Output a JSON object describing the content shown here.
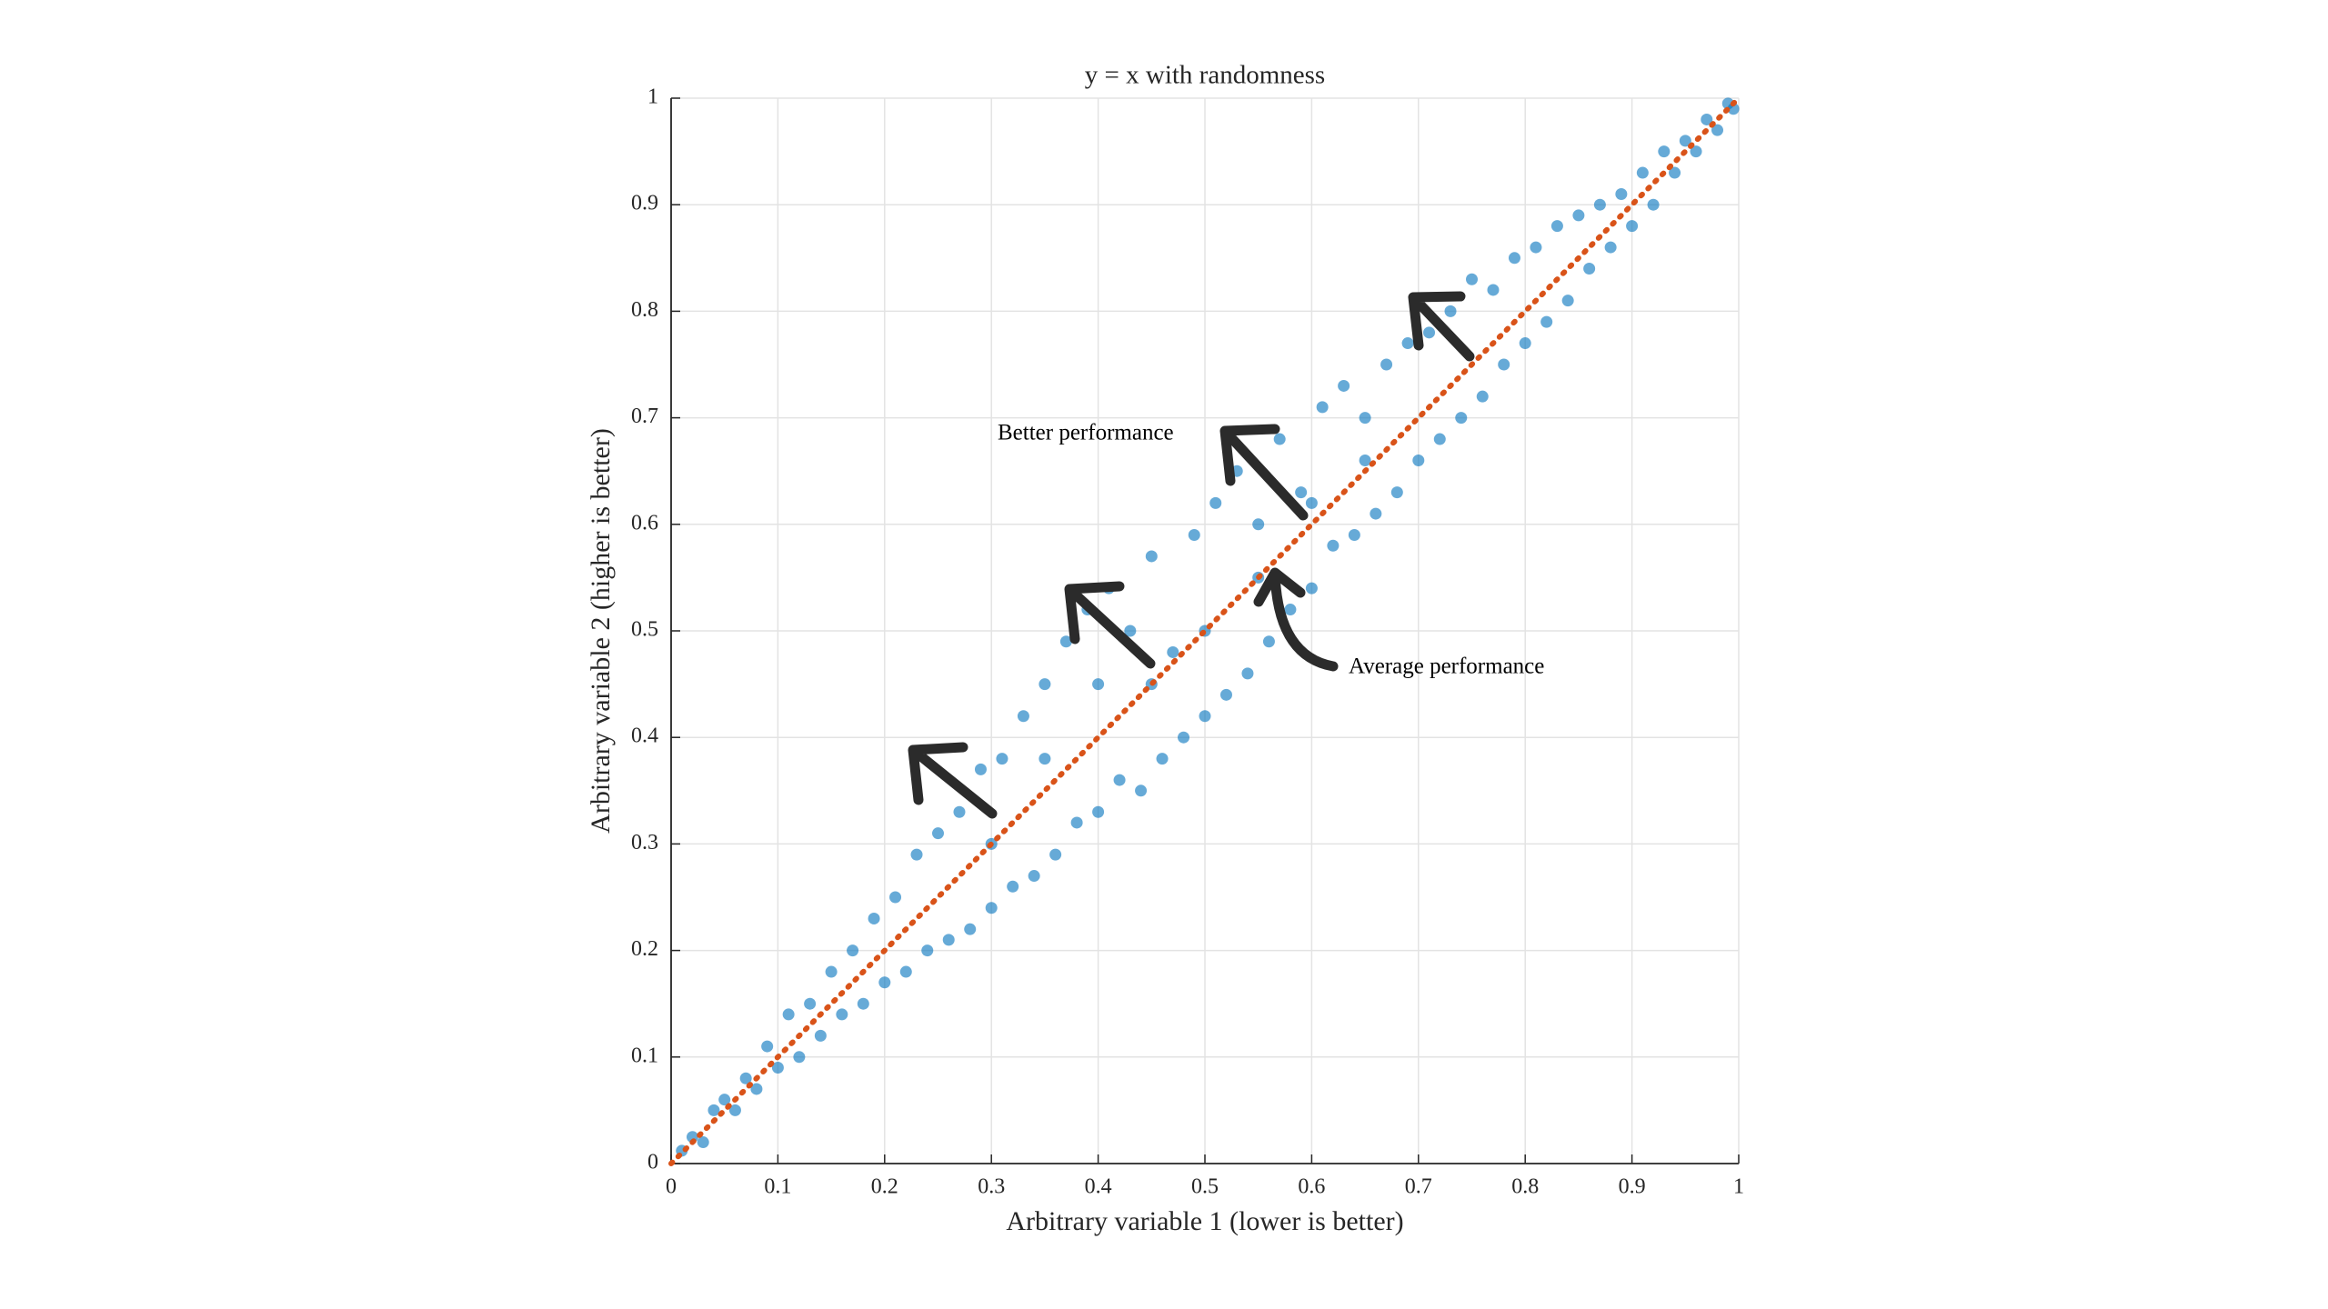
{
  "chart_data": {
    "type": "scatter",
    "title": "y = x with randomness",
    "x_label": "Arbitrary variable 1 (lower is better)",
    "y_label": "Arbitrary variable 2 (higher is better)",
    "annotations": [
      "Better performance",
      "Average performance"
    ],
    "xlim": [
      0,
      1
    ],
    "ylim": [
      0,
      1
    ],
    "xticks": [
      0,
      0.1,
      0.2,
      0.3,
      0.4,
      0.5,
      0.6,
      0.7,
      0.8,
      0.9,
      1
    ],
    "yticks": [
      0,
      0.1,
      0.2,
      0.3,
      0.4,
      0.5,
      0.6,
      0.7,
      0.8,
      0.9,
      1
    ],
    "grid": true,
    "reference_line": {
      "x": [
        0,
        1
      ],
      "y": [
        0,
        1
      ],
      "color": "#d95319"
    },
    "series": [
      {
        "color": "#0072bd",
        "x": [
          0.01,
          0.02,
          0.03,
          0.04,
          0.05,
          0.06,
          0.07,
          0.08,
          0.09,
          0.1,
          0.11,
          0.12,
          0.13,
          0.14,
          0.15,
          0.16,
          0.17,
          0.18,
          0.19,
          0.2,
          0.21,
          0.22,
          0.23,
          0.24,
          0.25,
          0.26,
          0.27,
          0.28,
          0.29,
          0.3,
          0.31,
          0.32,
          0.33,
          0.34,
          0.35,
          0.36,
          0.37,
          0.38,
          0.39,
          0.4,
          0.41,
          0.42,
          0.43,
          0.44,
          0.45,
          0.46,
          0.47,
          0.48,
          0.49,
          0.5,
          0.51,
          0.52,
          0.53,
          0.54,
          0.55,
          0.56,
          0.57,
          0.58,
          0.59,
          0.6,
          0.61,
          0.62,
          0.63,
          0.64,
          0.65,
          0.66,
          0.67,
          0.68,
          0.69,
          0.7,
          0.71,
          0.72,
          0.73,
          0.74,
          0.75,
          0.76,
          0.77,
          0.78,
          0.79,
          0.8,
          0.81,
          0.82,
          0.83,
          0.84,
          0.85,
          0.86,
          0.87,
          0.88,
          0.89,
          0.9,
          0.91,
          0.92,
          0.93,
          0.94,
          0.95,
          0.96,
          0.97,
          0.98,
          0.99,
          0.995,
          0.35,
          0.45,
          0.55,
          0.4,
          0.5,
          0.6,
          0.3,
          0.65
        ],
        "values": [
          0.012,
          0.025,
          0.02,
          0.05,
          0.06,
          0.05,
          0.08,
          0.07,
          0.11,
          0.09,
          0.14,
          0.1,
          0.15,
          0.12,
          0.18,
          0.14,
          0.2,
          0.15,
          0.23,
          0.17,
          0.25,
          0.18,
          0.29,
          0.2,
          0.31,
          0.21,
          0.33,
          0.22,
          0.37,
          0.24,
          0.38,
          0.26,
          0.42,
          0.27,
          0.45,
          0.29,
          0.49,
          0.32,
          0.52,
          0.33,
          0.54,
          0.36,
          0.5,
          0.35,
          0.57,
          0.38,
          0.48,
          0.4,
          0.59,
          0.42,
          0.62,
          0.44,
          0.65,
          0.46,
          0.6,
          0.49,
          0.68,
          0.52,
          0.63,
          0.54,
          0.71,
          0.58,
          0.73,
          0.59,
          0.7,
          0.61,
          0.75,
          0.63,
          0.77,
          0.66,
          0.78,
          0.68,
          0.8,
          0.7,
          0.83,
          0.72,
          0.82,
          0.75,
          0.85,
          0.77,
          0.86,
          0.79,
          0.88,
          0.81,
          0.89,
          0.84,
          0.9,
          0.86,
          0.91,
          0.88,
          0.93,
          0.9,
          0.95,
          0.93,
          0.96,
          0.95,
          0.98,
          0.97,
          0.995,
          0.99,
          0.38,
          0.45,
          0.55,
          0.45,
          0.5,
          0.62,
          0.3,
          0.66
        ]
      }
    ]
  }
}
